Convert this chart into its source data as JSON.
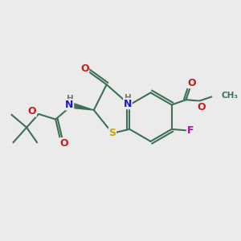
{
  "bg_color": "#ebebeb",
  "bond_color": "#3d7055",
  "bond_width": 1.5,
  "atom_colors": {
    "N": "#1a1acc",
    "O": "#cc1a1a",
    "S": "#bbaa00",
    "F": "#bb00bb",
    "H": "#777777",
    "C": "#3d7055"
  }
}
